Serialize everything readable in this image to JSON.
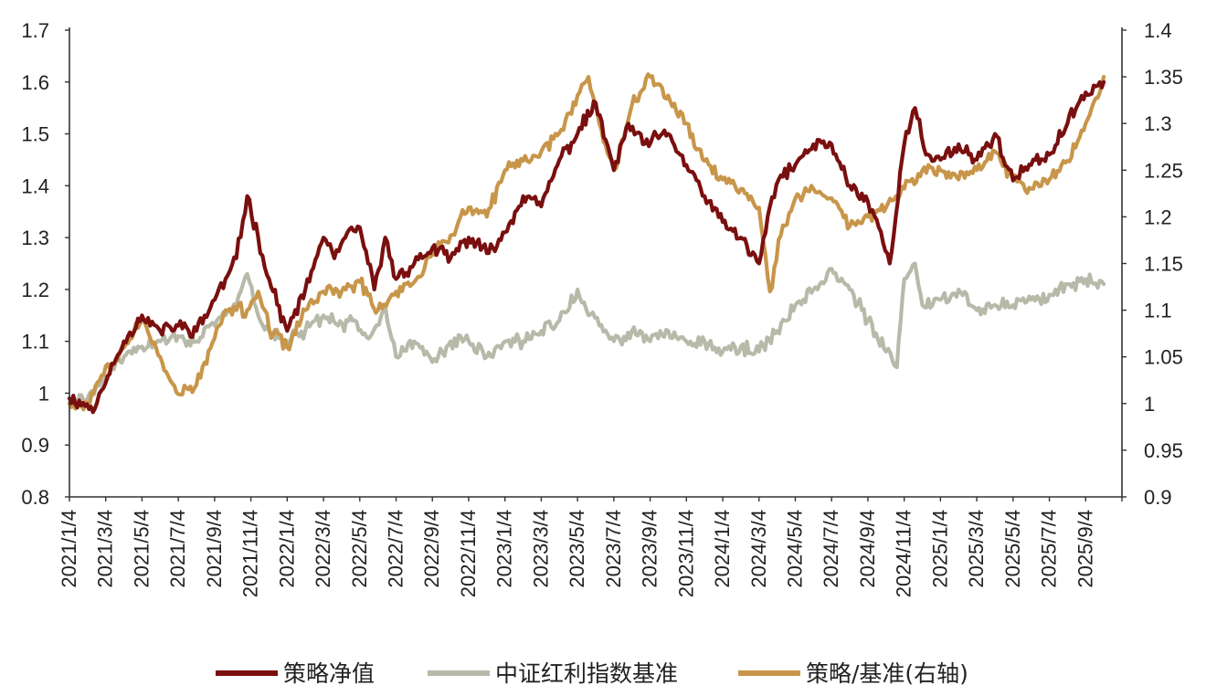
{
  "chart_data": {
    "type": "line",
    "title": "",
    "xlabel": "",
    "ylabel": "",
    "ylim_left": [
      0.8,
      1.7
    ],
    "ylim_right": [
      0.9,
      1.4
    ],
    "yticks_left": [
      "0.8",
      "0.9",
      "1",
      "1.1",
      "1.2",
      "1.3",
      "1.4",
      "1.5",
      "1.6",
      "1.7"
    ],
    "yticks_right": [
      "0.9",
      "0.95",
      "1",
      "1.05",
      "1.1",
      "1.15",
      "1.2",
      "1.25",
      "1.3",
      "1.35",
      "1.4"
    ],
    "xticks": [
      "2021/1/4",
      "2021/3/4",
      "2021/5/4",
      "2021/7/4",
      "2021/9/4",
      "2021/11/4",
      "2022/1/4",
      "2022/3/4",
      "2022/5/4",
      "2022/7/4",
      "2022/9/4",
      "2022/11/4",
      "2023/1/4",
      "2023/3/4",
      "2023/5/4",
      "2023/7/4",
      "2023/9/4",
      "2023/11/4",
      "2024/1/4",
      "2024/3/4",
      "2024/5/4",
      "2024/7/4",
      "2024/9/4",
      "2024/11/4",
      "2025/1/4",
      "2025/3/4",
      "2025/5/4",
      "2025/7/4",
      "2025/9/4"
    ],
    "legend_position": "bottom",
    "series": [
      {
        "name": "策略净值",
        "axis": "left",
        "color": "#7a0f0f",
        "points": [
          [
            0,
            0.99
          ],
          [
            0.7,
            0.97
          ],
          [
            1,
            1.02
          ],
          [
            1.5,
            1.1
          ],
          [
            2,
            1.15
          ],
          [
            2.5,
            1.12
          ],
          [
            3,
            1.13
          ],
          [
            3.5,
            1.12
          ],
          [
            4,
            1.18
          ],
          [
            4.3,
            1.22
          ],
          [
            4.6,
            1.26
          ],
          [
            4.9,
            1.38
          ],
          [
            5.2,
            1.3
          ],
          [
            5.5,
            1.22
          ],
          [
            6,
            1.12
          ],
          [
            6.5,
            1.2
          ],
          [
            7,
            1.3
          ],
          [
            7.3,
            1.26
          ],
          [
            7.6,
            1.3
          ],
          [
            8,
            1.32
          ],
          [
            8.4,
            1.2
          ],
          [
            8.7,
            1.3
          ],
          [
            9,
            1.22
          ],
          [
            9.5,
            1.25
          ],
          [
            10,
            1.28
          ],
          [
            10.5,
            1.26
          ],
          [
            11,
            1.3
          ],
          [
            11.5,
            1.27
          ],
          [
            12,
            1.31
          ],
          [
            12.5,
            1.38
          ],
          [
            13,
            1.36
          ],
          [
            13.5,
            1.45
          ],
          [
            14,
            1.5
          ],
          [
            14.5,
            1.56
          ],
          [
            15,
            1.43
          ],
          [
            15.4,
            1.52
          ],
          [
            15.8,
            1.48
          ],
          [
            16.5,
            1.5
          ],
          [
            17,
            1.44
          ],
          [
            17.5,
            1.38
          ],
          [
            18,
            1.33
          ],
          [
            18.5,
            1.3
          ],
          [
            19,
            1.25
          ],
          [
            19.3,
            1.36
          ],
          [
            19.6,
            1.42
          ],
          [
            20,
            1.44
          ],
          [
            20.5,
            1.48
          ],
          [
            21,
            1.48
          ],
          [
            21.5,
            1.4
          ],
          [
            22,
            1.37
          ],
          [
            22.3,
            1.32
          ],
          [
            22.6,
            1.25
          ],
          [
            23,
            1.48
          ],
          [
            23.3,
            1.55
          ],
          [
            23.6,
            1.46
          ],
          [
            24,
            1.45
          ],
          [
            24.5,
            1.48
          ],
          [
            25,
            1.45
          ],
          [
            25.5,
            1.5
          ],
          [
            26,
            1.41
          ],
          [
            26.5,
            1.44
          ],
          [
            27,
            1.46
          ],
          [
            27.5,
            1.52
          ],
          [
            28,
            1.58
          ],
          [
            28.5,
            1.6
          ]
        ]
      },
      {
        "name": "中证红利指数基准",
        "axis": "left",
        "color": "#b8baa9",
        "points": [
          [
            0,
            0.98
          ],
          [
            0.5,
            0.99
          ],
          [
            1,
            1.03
          ],
          [
            1.5,
            1.07
          ],
          [
            2,
            1.09
          ],
          [
            2.5,
            1.1
          ],
          [
            3,
            1.11
          ],
          [
            3.5,
            1.1
          ],
          [
            4,
            1.13
          ],
          [
            4.3,
            1.15
          ],
          [
            4.6,
            1.17
          ],
          [
            4.9,
            1.23
          ],
          [
            5.2,
            1.15
          ],
          [
            5.5,
            1.12
          ],
          [
            6,
            1.1
          ],
          [
            6.5,
            1.12
          ],
          [
            7,
            1.15
          ],
          [
            7.4,
            1.13
          ],
          [
            7.8,
            1.14
          ],
          [
            8.3,
            1.11
          ],
          [
            8.7,
            1.17
          ],
          [
            9,
            1.07
          ],
          [
            9.5,
            1.1
          ],
          [
            10,
            1.06
          ],
          [
            10.5,
            1.1
          ],
          [
            11,
            1.1
          ],
          [
            11.5,
            1.07
          ],
          [
            12,
            1.1
          ],
          [
            12.5,
            1.1
          ],
          [
            13,
            1.12
          ],
          [
            13.5,
            1.14
          ],
          [
            14,
            1.2
          ],
          [
            14.3,
            1.15
          ],
          [
            14.6,
            1.13
          ],
          [
            15,
            1.1
          ],
          [
            15.5,
            1.12
          ],
          [
            16,
            1.1
          ],
          [
            16.5,
            1.12
          ],
          [
            17,
            1.1
          ],
          [
            17.5,
            1.1
          ],
          [
            18,
            1.08
          ],
          [
            18.5,
            1.09
          ],
          [
            19,
            1.08
          ],
          [
            19.5,
            1.12
          ],
          [
            20,
            1.17
          ],
          [
            20.5,
            1.2
          ],
          [
            21,
            1.24
          ],
          [
            21.5,
            1.2
          ],
          [
            22,
            1.14
          ],
          [
            22.5,
            1.08
          ],
          [
            22.8,
            1.05
          ],
          [
            23,
            1.22
          ],
          [
            23.3,
            1.25
          ],
          [
            23.5,
            1.17
          ],
          [
            24,
            1.18
          ],
          [
            24.5,
            1.2
          ],
          [
            25,
            1.16
          ],
          [
            25.5,
            1.17
          ],
          [
            26,
            1.17
          ],
          [
            26.5,
            1.18
          ],
          [
            27,
            1.19
          ],
          [
            27.5,
            1.21
          ],
          [
            28,
            1.22
          ],
          [
            28.5,
            1.21
          ]
        ]
      },
      {
        "name": "策略/基准(右轴)",
        "axis": "right",
        "color": "#c8964a",
        "points": [
          [
            0,
            1.0
          ],
          [
            0.5,
            1.0
          ],
          [
            1,
            1.04
          ],
          [
            1.5,
            1.06
          ],
          [
            2,
            1.09
          ],
          [
            2.5,
            1.05
          ],
          [
            3,
            1.01
          ],
          [
            3.5,
            1.02
          ],
          [
            4,
            1.07
          ],
          [
            4.3,
            1.1
          ],
          [
            4.6,
            1.1
          ],
          [
            4.9,
            1.1
          ],
          [
            5.2,
            1.12
          ],
          [
            5.5,
            1.08
          ],
          [
            6,
            1.06
          ],
          [
            6.5,
            1.1
          ],
          [
            7,
            1.12
          ],
          [
            7.5,
            1.12
          ],
          [
            8,
            1.13
          ],
          [
            8.5,
            1.1
          ],
          [
            9,
            1.12
          ],
          [
            9.5,
            1.13
          ],
          [
            10,
            1.16
          ],
          [
            10.5,
            1.18
          ],
          [
            11,
            1.21
          ],
          [
            11.5,
            1.2
          ],
          [
            12,
            1.25
          ],
          [
            12.5,
            1.26
          ],
          [
            13,
            1.27
          ],
          [
            13.5,
            1.29
          ],
          [
            14,
            1.33
          ],
          [
            14.3,
            1.35
          ],
          [
            14.6,
            1.3
          ],
          [
            15,
            1.25
          ],
          [
            15.5,
            1.32
          ],
          [
            16,
            1.35
          ],
          [
            16.5,
            1.33
          ],
          [
            17,
            1.3
          ],
          [
            17.5,
            1.26
          ],
          [
            18,
            1.24
          ],
          [
            18.5,
            1.23
          ],
          [
            19,
            1.21
          ],
          [
            19.3,
            1.12
          ],
          [
            19.6,
            1.18
          ],
          [
            20,
            1.22
          ],
          [
            20.5,
            1.23
          ],
          [
            21,
            1.22
          ],
          [
            21.5,
            1.19
          ],
          [
            22,
            1.2
          ],
          [
            22.5,
            1.21
          ],
          [
            23,
            1.23
          ],
          [
            23.5,
            1.25
          ],
          [
            24,
            1.25
          ],
          [
            24.5,
            1.24
          ],
          [
            25,
            1.25
          ],
          [
            25.5,
            1.27
          ],
          [
            26,
            1.24
          ],
          [
            26.5,
            1.23
          ],
          [
            27,
            1.24
          ],
          [
            27.5,
            1.26
          ],
          [
            28,
            1.3
          ],
          [
            28.5,
            1.35
          ]
        ]
      }
    ]
  }
}
